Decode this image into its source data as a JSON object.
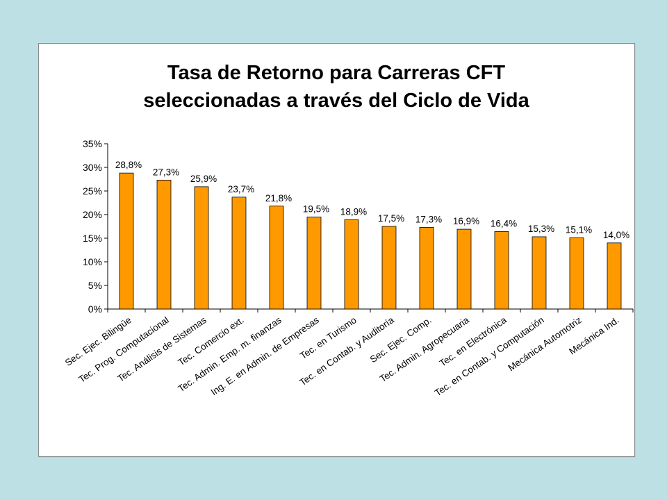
{
  "chart_data": {
    "type": "bar",
    "title": [
      "Tasa de Retorno para Carreras CFT",
      "seleccionadas a través del Ciclo de Vida"
    ],
    "xlabel": "",
    "ylabel": "",
    "ylim": [
      0,
      35
    ],
    "y_ticks": [
      0,
      5,
      10,
      15,
      20,
      25,
      30,
      35
    ],
    "y_tick_labels": [
      "0%",
      "5%",
      "10%",
      "15%",
      "20%",
      "25%",
      "30%",
      "35%"
    ],
    "categories": [
      "Sec. Ejec. Bilingüe",
      "Tec. Prog. Computacional",
      "Tec. Análisis de Sistemas",
      "Tec. Comercio ext.",
      "Tec. Admin. Emp. m. finanzas",
      "Ing. E. en Admin. de Empresas",
      "Tec. en Turismo",
      "Tec. en Contab. y Auditoría",
      "Sec. Ejec. Comp.",
      "Tec. Admin. Agropecuaria",
      "Tec. en Electrónica",
      "Tec. en Contab. y Computación",
      "Mecánica Automotriz",
      "Mecánica Ind."
    ],
    "values": [
      28.8,
      27.3,
      25.9,
      23.7,
      21.8,
      19.5,
      18.9,
      17.5,
      17.3,
      16.9,
      16.4,
      15.3,
      15.1,
      14.0
    ],
    "data_labels": [
      "28,8%",
      "27,3%",
      "25,9%",
      "23,7%",
      "21,8%",
      "19,5%",
      "18,9%",
      "17,5%",
      "17,3%",
      "16,9%",
      "16,4%",
      "15,3%",
      "15,1%",
      "14,0%"
    ],
    "bar_color": "#ff9900",
    "bar_edge_color": "#000000",
    "grid": false,
    "legend": "none"
  },
  "colors": {
    "page_background": "#bde0e4",
    "panel_background": "#ffffff"
  }
}
